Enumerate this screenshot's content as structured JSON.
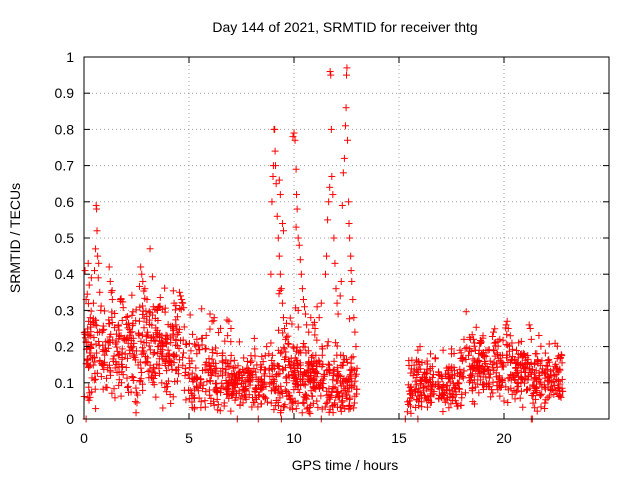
{
  "chart_data": {
    "type": "scatter",
    "title": "Day 144 of 2021, SRMTID for receiver thtg",
    "xlabel": "GPS time / hours",
    "ylabel": "SRMTID / TECUs",
    "xlim": [
      0,
      25
    ],
    "ylim": [
      0,
      1
    ],
    "xticks": [
      "0",
      "5",
      "10",
      "15",
      "20"
    ],
    "yticks": [
      "0",
      "0.1",
      "0.2",
      "0.3",
      "0.4",
      "0.5",
      "0.6",
      "0.7",
      "0.8",
      "0.9",
      "1"
    ],
    "grid": true,
    "marker": "plus",
    "color": "#ff0000",
    "segments": [
      {
        "x_start": 0.0,
        "x_end": 4.9,
        "base": 0.19,
        "spread": 0.07,
        "n": 420
      },
      {
        "x_start": 4.9,
        "x_end": 7.0,
        "base": 0.12,
        "spread": 0.05,
        "n": 160
      },
      {
        "x_start": 7.0,
        "x_end": 9.2,
        "base": 0.1,
        "spread": 0.035,
        "n": 170
      },
      {
        "x_start": 9.2,
        "x_end": 10.8,
        "base": 0.12,
        "spread": 0.06,
        "n": 160
      },
      {
        "x_start": 10.8,
        "x_end": 12.0,
        "base": 0.1,
        "spread": 0.05,
        "n": 110
      },
      {
        "x_start": 12.0,
        "x_end": 13.0,
        "base": 0.1,
        "spread": 0.04,
        "n": 90
      },
      {
        "x_start": 15.4,
        "x_end": 18.0,
        "base": 0.09,
        "spread": 0.035,
        "n": 200
      },
      {
        "x_start": 18.0,
        "x_end": 21.2,
        "base": 0.14,
        "spread": 0.04,
        "n": 260
      },
      {
        "x_start": 21.2,
        "x_end": 22.8,
        "base": 0.11,
        "spread": 0.04,
        "n": 130
      }
    ],
    "points": [
      [
        0.05,
        0.41
      ],
      [
        0.1,
        0.33
      ],
      [
        0.2,
        0.43
      ],
      [
        0.25,
        0.37
      ],
      [
        0.3,
        0.28
      ],
      [
        0.35,
        0.39
      ],
      [
        0.45,
        0.32
      ],
      [
        0.5,
        0.41
      ],
      [
        0.55,
        0.47
      ],
      [
        0.58,
        0.59
      ],
      [
        0.6,
        0.58
      ],
      [
        0.62,
        0.52
      ],
      [
        0.65,
        0.45
      ],
      [
        0.68,
        0.39
      ],
      [
        0.7,
        0.43
      ],
      [
        0.75,
        0.35
      ],
      [
        0.8,
        0.3
      ],
      [
        1.2,
        0.42
      ],
      [
        1.25,
        0.38
      ],
      [
        1.3,
        0.35
      ],
      [
        1.35,
        0.33
      ],
      [
        2.7,
        0.42
      ],
      [
        2.75,
        0.4
      ],
      [
        2.8,
        0.38
      ],
      [
        2.9,
        0.36
      ],
      [
        3.0,
        0.33
      ],
      [
        3.3,
        0.31
      ],
      [
        3.5,
        0.3
      ],
      [
        4.55,
        0.35
      ],
      [
        4.6,
        0.34
      ],
      [
        4.65,
        0.33
      ],
      [
        4.7,
        0.32
      ],
      [
        6.0,
        0.29
      ],
      [
        6.1,
        0.27
      ],
      [
        6.2,
        0.28
      ],
      [
        6.9,
        0.27
      ],
      [
        7.0,
        0.25
      ],
      [
        8.7,
        0.2
      ],
      [
        8.8,
        0.18
      ],
      [
        8.9,
        0.21
      ],
      [
        8.9,
        0.4
      ],
      [
        8.95,
        0.6
      ],
      [
        9.0,
        0.67
      ],
      [
        9.02,
        0.7
      ],
      [
        9.05,
        0.8
      ],
      [
        9.08,
        0.8
      ],
      [
        9.1,
        0.74
      ],
      [
        9.12,
        0.7
      ],
      [
        9.15,
        0.65
      ],
      [
        9.2,
        0.56
      ],
      [
        9.25,
        0.5
      ],
      [
        9.3,
        0.45
      ],
      [
        9.35,
        0.4
      ],
      [
        9.4,
        0.36
      ],
      [
        9.45,
        0.32
      ],
      [
        9.5,
        0.28
      ],
      [
        9.55,
        0.25
      ],
      [
        9.6,
        0.22
      ],
      [
        9.5,
        0.52
      ],
      [
        9.45,
        0.54
      ],
      [
        9.3,
        0.66
      ],
      [
        9.35,
        0.62
      ],
      [
        9.95,
        0.78
      ],
      [
        10.0,
        0.79
      ],
      [
        10.05,
        0.77
      ],
      [
        10.1,
        0.69
      ],
      [
        10.12,
        0.62
      ],
      [
        10.15,
        0.58
      ],
      [
        10.1,
        0.53
      ],
      [
        10.2,
        0.5
      ],
      [
        10.25,
        0.48
      ],
      [
        10.3,
        0.44
      ],
      [
        10.35,
        0.4
      ],
      [
        10.4,
        0.36
      ],
      [
        10.45,
        0.33
      ],
      [
        10.5,
        0.31
      ],
      [
        10.55,
        0.29
      ],
      [
        10.6,
        0.26
      ],
      [
        10.7,
        0.24
      ],
      [
        10.2,
        0.3
      ],
      [
        10.8,
        0.28
      ],
      [
        10.9,
        0.26
      ],
      [
        11.0,
        0.25
      ],
      [
        11.2,
        0.28
      ],
      [
        11.1,
        0.31
      ],
      [
        11.3,
        0.32
      ],
      [
        11.5,
        0.4
      ],
      [
        11.55,
        0.45
      ],
      [
        11.6,
        0.55
      ],
      [
        11.65,
        0.6
      ],
      [
        11.7,
        0.64
      ],
      [
        11.72,
        0.96
      ],
      [
        11.75,
        0.95
      ],
      [
        11.78,
        0.8
      ],
      [
        11.8,
        0.67
      ],
      [
        11.85,
        0.62
      ],
      [
        11.9,
        0.5
      ],
      [
        11.95,
        0.43
      ],
      [
        12.0,
        0.36
      ],
      [
        12.05,
        0.32
      ],
      [
        12.1,
        0.29
      ],
      [
        12.2,
        0.34
      ],
      [
        12.25,
        0.38
      ],
      [
        12.3,
        0.59
      ],
      [
        12.35,
        0.68
      ],
      [
        12.4,
        0.72
      ],
      [
        12.45,
        0.81
      ],
      [
        12.48,
        0.86
      ],
      [
        12.5,
        0.95
      ],
      [
        12.52,
        0.97
      ],
      [
        12.55,
        0.77
      ],
      [
        12.6,
        0.6
      ],
      [
        12.62,
        0.54
      ],
      [
        12.65,
        0.5
      ],
      [
        12.7,
        0.45
      ],
      [
        12.72,
        0.41
      ],
      [
        12.75,
        0.38
      ],
      [
        12.8,
        0.33
      ],
      [
        12.85,
        0.28
      ],
      [
        12.9,
        0.24
      ],
      [
        12.95,
        0.2
      ],
      [
        13.0,
        0.14
      ],
      [
        15.4,
        0.02
      ],
      [
        15.45,
        0.04
      ],
      [
        15.5,
        0.05
      ],
      [
        15.55,
        0.07
      ],
      [
        15.6,
        0.08
      ],
      [
        15.9,
        0.19
      ],
      [
        16.0,
        0.2
      ],
      [
        16.5,
        0.18
      ],
      [
        17.1,
        0.19
      ],
      [
        17.5,
        0.18
      ],
      [
        17.9,
        0.19
      ],
      [
        18.4,
        0.22
      ],
      [
        18.6,
        0.21
      ],
      [
        19.0,
        0.23
      ],
      [
        19.5,
        0.24
      ],
      [
        19.8,
        0.22
      ],
      [
        20.1,
        0.26
      ],
      [
        20.15,
        0.27
      ],
      [
        20.2,
        0.25
      ],
      [
        20.3,
        0.23
      ],
      [
        21.2,
        0.26
      ],
      [
        21.25,
        0.25
      ],
      [
        21.3,
        0.22
      ],
      [
        22.5,
        0.14
      ],
      [
        22.6,
        0.13
      ]
    ],
    "zero_points": [
      0.1,
      7.3,
      8.3,
      9.4,
      11.3,
      15.3,
      15.9,
      21.3,
      21.35
    ]
  }
}
